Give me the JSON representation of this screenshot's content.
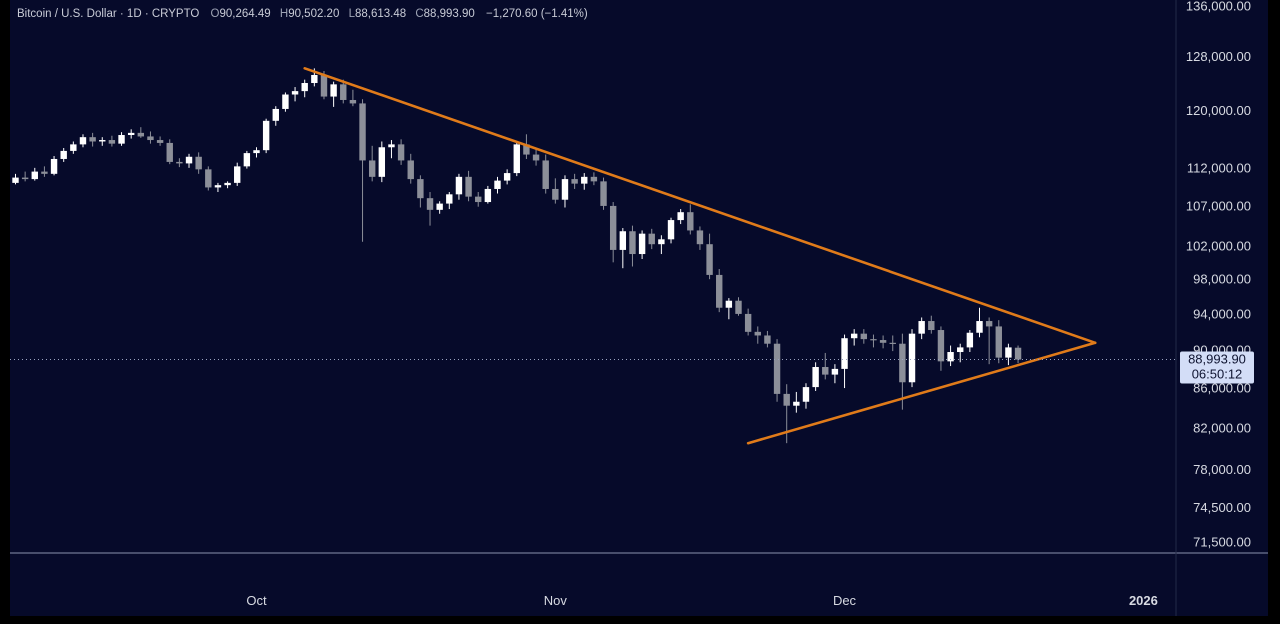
{
  "header": {
    "symbol": "Bitcoin / U.S. Dollar · 1D · CRYPTO",
    "open_label": "O",
    "open": "90,264.49",
    "high_label": "H",
    "high": "90,502.20",
    "low_label": "L",
    "low": "88,613.48",
    "close_label": "C",
    "close": "88,993.90",
    "change": "−1,270.60 (−1.41%)"
  },
  "price_tag": {
    "price": "88,993.90",
    "countdown": "06:50:12"
  },
  "colors": {
    "background": "#060a2a",
    "up": "#ffffff",
    "down": "#8c8f99",
    "trendline": "#e07b1a",
    "axis_text": "#d7dae2"
  },
  "chart_data": {
    "type": "candlestick",
    "title": "Bitcoin / U.S. Dollar · 1D · CRYPTO",
    "y_scale": "log",
    "ylim": [
      70000,
      138000
    ],
    "y_ticks": [
      "136,000.00",
      "128,000.00",
      "120,000.00",
      "112,000.00",
      "107,000.00",
      "102,000.00",
      "98,000.00",
      "94,000.00",
      "90,000.00",
      "86,000.00",
      "82,000.00",
      "78,000.00",
      "74,500.00",
      "71,500.00"
    ],
    "y_tick_values": [
      136000,
      128000,
      120000,
      112000,
      107000,
      102000,
      98000,
      94000,
      90000,
      86000,
      82000,
      78000,
      74500,
      71500
    ],
    "x_labels": [
      "Oct",
      "Nov",
      "Dec",
      "2026"
    ],
    "x_label_dates": [
      "2025-10-01",
      "2025-11-01",
      "2025-12-01",
      "2026-01-01"
    ],
    "start_date": "2025-09-06",
    "current_price": 88993.9,
    "candles": [
      [
        110000,
        111200,
        109800,
        110700
      ],
      [
        110700,
        111500,
        110200,
        110500
      ],
      [
        110500,
        112000,
        110300,
        111500
      ],
      [
        111500,
        112200,
        110800,
        111200
      ],
      [
        111200,
        113600,
        111000,
        113200
      ],
      [
        113200,
        114700,
        112800,
        114300
      ],
      [
        114300,
        115600,
        113900,
        115200
      ],
      [
        115200,
        116600,
        114800,
        116200
      ],
      [
        116200,
        116800,
        114900,
        115600
      ],
      [
        115600,
        116200,
        115000,
        115800
      ],
      [
        115800,
        116400,
        114900,
        115300
      ],
      [
        115300,
        116900,
        115000,
        116500
      ],
      [
        116500,
        117300,
        116000,
        116800
      ],
      [
        116800,
        117600,
        116100,
        116300
      ],
      [
        116300,
        117000,
        115300,
        115800
      ],
      [
        115800,
        116300,
        115000,
        115400
      ],
      [
        115400,
        115900,
        112500,
        112800
      ],
      [
        112800,
        113300,
        112100,
        112600
      ],
      [
        112600,
        113900,
        112000,
        113500
      ],
      [
        113500,
        114100,
        111200,
        111800
      ],
      [
        111800,
        112200,
        109000,
        109400
      ],
      [
        109400,
        110000,
        108800,
        109700
      ],
      [
        109700,
        110200,
        109300,
        110000
      ],
      [
        110000,
        112700,
        109600,
        112200
      ],
      [
        112200,
        114300,
        111900,
        114000
      ],
      [
        114000,
        114800,
        113400,
        114400
      ],
      [
        114400,
        118800,
        114000,
        118500
      ],
      [
        118500,
        120600,
        117800,
        120200
      ],
      [
        120200,
        122600,
        119800,
        122300
      ],
      [
        122300,
        123400,
        121300,
        122800
      ],
      [
        122800,
        124500,
        121900,
        124000
      ],
      [
        124000,
        126200,
        123500,
        125200
      ],
      [
        125200,
        125800,
        121600,
        122000
      ],
      [
        122000,
        124200,
        120500,
        123800
      ],
      [
        123800,
        124500,
        121000,
        121500
      ],
      [
        121500,
        123000,
        120600,
        121000
      ],
      [
        121000,
        121600,
        102500,
        113000
      ],
      [
        113000,
        115000,
        110200,
        110800
      ],
      [
        110800,
        115600,
        110100,
        114800
      ],
      [
        114800,
        115800,
        113300,
        115200
      ],
      [
        115200,
        115900,
        112400,
        113000
      ],
      [
        113000,
        113900,
        109900,
        110500
      ],
      [
        110500,
        111000,
        106800,
        108000
      ],
      [
        108000,
        108800,
        104500,
        106500
      ],
      [
        106500,
        107600,
        106000,
        107300
      ],
      [
        107300,
        108800,
        106600,
        108500
      ],
      [
        108500,
        111200,
        107800,
        110800
      ],
      [
        110800,
        111600,
        107600,
        108200
      ],
      [
        108200,
        108800,
        106900,
        107500
      ],
      [
        107500,
        109600,
        107300,
        109200
      ],
      [
        109200,
        110800,
        108600,
        110300
      ],
      [
        110300,
        111800,
        109800,
        111300
      ],
      [
        111300,
        115600,
        110900,
        115200
      ],
      [
        115200,
        116600,
        113200,
        113800
      ],
      [
        113800,
        114700,
        112300,
        113000
      ],
      [
        113000,
        113800,
        108600,
        109200
      ],
      [
        109200,
        110600,
        107300,
        107800
      ],
      [
        107800,
        111000,
        106800,
        110500
      ],
      [
        110500,
        111200,
        109200,
        109900
      ],
      [
        109900,
        111300,
        109100,
        110800
      ],
      [
        110800,
        111400,
        109700,
        110200
      ],
      [
        110200,
        110700,
        106500,
        107000
      ],
      [
        107000,
        107500,
        100000,
        101500
      ],
      [
        101500,
        104200,
        99300,
        103800
      ],
      [
        103800,
        104500,
        99500,
        101000
      ],
      [
        101000,
        103900,
        100400,
        103500
      ],
      [
        103500,
        104100,
        101600,
        102200
      ],
      [
        102200,
        103300,
        101000,
        102800
      ],
      [
        102800,
        105500,
        102300,
        105200
      ],
      [
        105200,
        106600,
        104700,
        106200
      ],
      [
        106200,
        107200,
        103400,
        103900
      ],
      [
        103900,
        104400,
        101500,
        102200
      ],
      [
        102200,
        103500,
        98000,
        98500
      ],
      [
        98500,
        99200,
        94200,
        94700
      ],
      [
        94700,
        95800,
        93400,
        95500
      ],
      [
        95500,
        95900,
        93800,
        94000
      ],
      [
        94000,
        94600,
        91600,
        92000
      ],
      [
        92000,
        92600,
        90700,
        91600
      ],
      [
        91600,
        92100,
        90300,
        90700
      ],
      [
        90700,
        91200,
        84600,
        85400
      ],
      [
        85400,
        86400,
        80500,
        84200
      ],
      [
        84200,
        85600,
        83500,
        84600
      ],
      [
        84600,
        86500,
        83900,
        86100
      ],
      [
        86100,
        88700,
        85700,
        88200
      ],
      [
        88200,
        89700,
        86900,
        87400
      ],
      [
        87400,
        88500,
        86500,
        88000
      ],
      [
        88000,
        91700,
        86000,
        91300
      ],
      [
        91300,
        92300,
        90500,
        91800
      ],
      [
        91800,
        92300,
        90700,
        91200
      ],
      [
        91200,
        91700,
        90300,
        91100
      ],
      [
        91100,
        91600,
        90200,
        90800
      ],
      [
        90800,
        91600,
        89900,
        90700
      ],
      [
        90700,
        91800,
        83800,
        86600
      ],
      [
        86600,
        92300,
        86100,
        91800
      ],
      [
        91800,
        93600,
        91200,
        93200
      ],
      [
        93200,
        93800,
        91800,
        92200
      ],
      [
        92200,
        92600,
        87800,
        88800
      ],
      [
        88800,
        90500,
        88300,
        89800
      ],
      [
        89800,
        90700,
        88700,
        90300
      ],
      [
        90300,
        92200,
        89800,
        91900
      ],
      [
        91900,
        94700,
        91400,
        93200
      ],
      [
        93200,
        93600,
        88500,
        92600
      ],
      [
        92600,
        93300,
        88600,
        89200
      ],
      [
        89200,
        90700,
        88400,
        90300
      ],
      [
        90264.49,
        90502.2,
        88613.48,
        88993.9
      ]
    ],
    "trendlines": [
      {
        "name": "upper-trendline",
        "points": [
          [
            "2025-10-06",
            126200
          ],
          [
            "2025-12-27",
            90800
          ]
        ]
      },
      {
        "name": "lower-trendline",
        "points": [
          [
            "2025-11-21",
            80500
          ],
          [
            "2025-12-27",
            90800
          ]
        ]
      }
    ]
  }
}
